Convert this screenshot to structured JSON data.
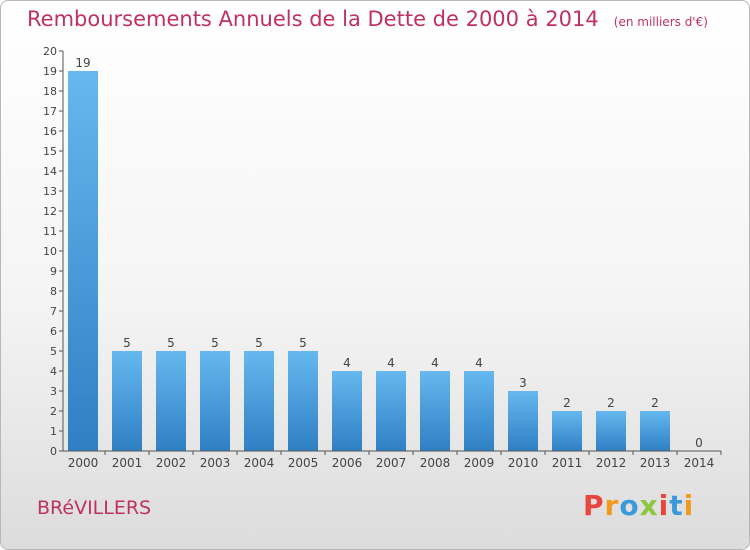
{
  "header": {
    "title": "Remboursements Annuels de la Dette de 2000 à 2014",
    "unit": "(en milliers d'€)"
  },
  "footer": {
    "city": "BRéVILLERS",
    "logo_text": "Proxiti",
    "logo_colors": [
      "#e8463c",
      "#f29a1e",
      "#3a9ad9",
      "#8dc63f",
      "#e8463c",
      "#3a9ad9",
      "#f29a1e"
    ]
  },
  "colors": {
    "title": "#c0325e",
    "bar_top": "#66b8ef",
    "bar_bottom": "#2f7fc4",
    "axis": "#555555"
  },
  "chart_data": {
    "type": "bar",
    "title": "Remboursements Annuels de la Dette de 2000 à 2014",
    "subtitle": "(en milliers d'€)",
    "xlabel": "",
    "ylabel": "",
    "categories": [
      "2000",
      "2001",
      "2002",
      "2003",
      "2004",
      "2005",
      "2006",
      "2007",
      "2008",
      "2009",
      "2010",
      "2011",
      "2012",
      "2013",
      "2014"
    ],
    "values": [
      19,
      5,
      5,
      5,
      5,
      5,
      4,
      4,
      4,
      4,
      3,
      2,
      2,
      2,
      0
    ],
    "ylim": [
      0,
      20
    ],
    "yticks": [
      0,
      1,
      2,
      3,
      4,
      5,
      6,
      7,
      8,
      9,
      10,
      11,
      12,
      13,
      14,
      15,
      16,
      17,
      18,
      19,
      20
    ],
    "grid": false,
    "data_labels": true
  }
}
